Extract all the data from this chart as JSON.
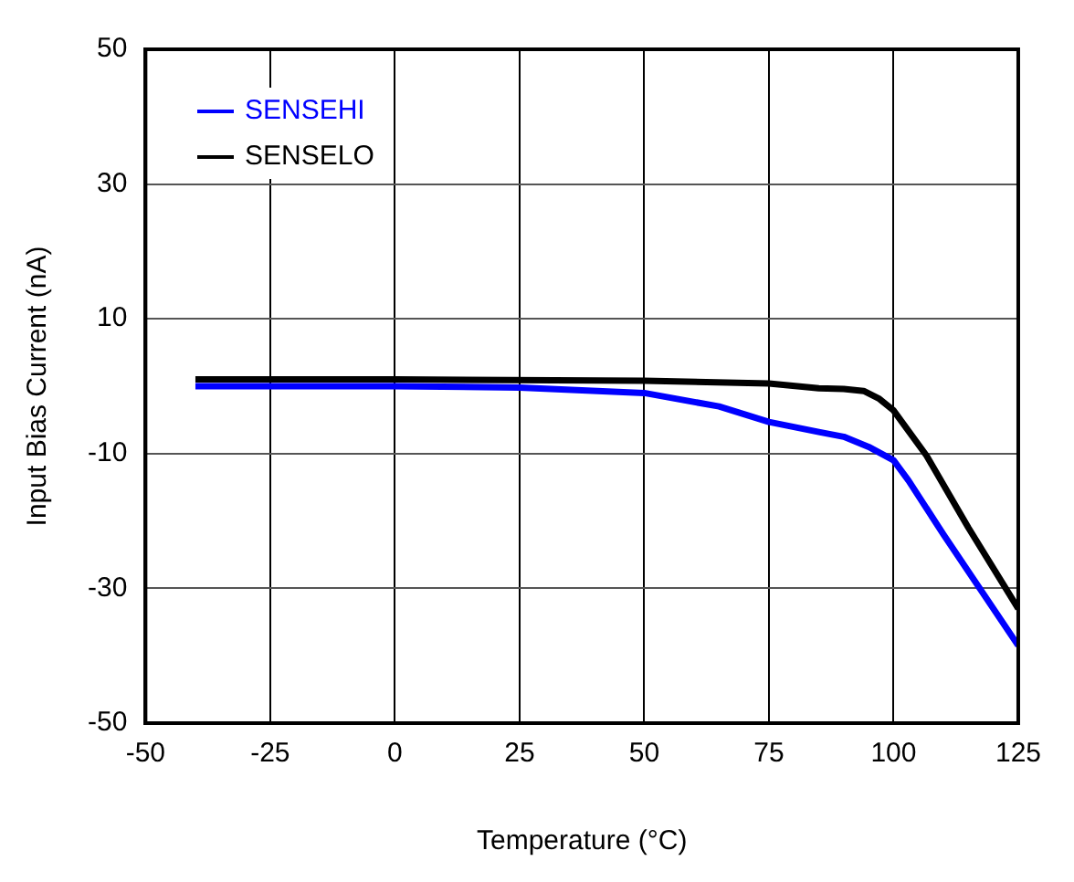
{
  "chart_data": {
    "type": "line",
    "xlabel": "Temperature (°C)",
    "ylabel": "Input Bias Current (nA)",
    "xlim": [
      -50,
      125
    ],
    "xticks": [
      -50,
      -25,
      0,
      25,
      50,
      75,
      100,
      125
    ],
    "ylim": [
      -50,
      50
    ],
    "yticks": [
      -50,
      -30,
      -10,
      10,
      30,
      50
    ],
    "grid": true,
    "legend": "top left",
    "marker": "none",
    "line_style": "solid",
    "series": [
      {
        "name": "SENSEHI",
        "color": "#0000ff",
        "x": [
          -40,
          0,
          25,
          50,
          65,
          75,
          85,
          90,
          95,
          100,
          103,
          110,
          125
        ],
        "values": [
          0,
          0,
          -0.2,
          -1,
          -3,
          -5.3,
          -6.8,
          -7.5,
          -9,
          -11,
          -14,
          -22,
          -38.5
        ]
      },
      {
        "name": "SENSELO",
        "color": "#000000",
        "x": [
          -40,
          0,
          50,
          75,
          85,
          90,
          94,
          97,
          100,
          106.6,
          115,
          125
        ],
        "values": [
          1,
          1,
          0.8,
          0.4,
          -0.3,
          -0.4,
          -0.7,
          -1.8,
          -3.6,
          -10.3,
          -21,
          -33
        ]
      }
    ]
  }
}
